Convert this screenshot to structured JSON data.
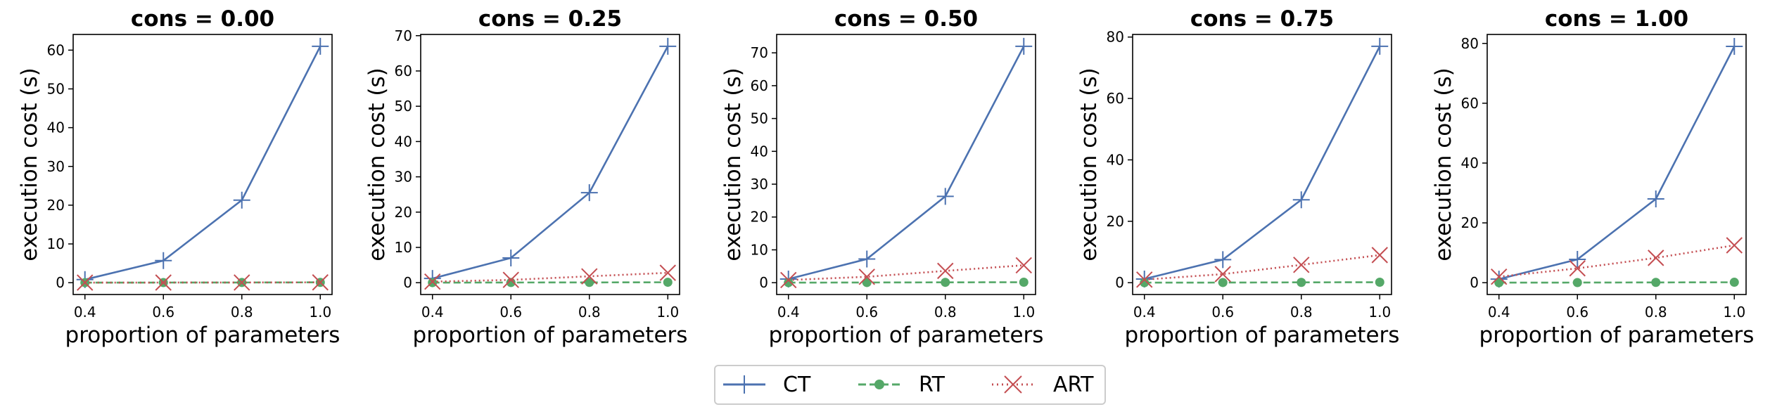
{
  "figure": {
    "legend": [
      {
        "name": "CT",
        "color": "#4c72b0",
        "marker": "plus",
        "line": "solid"
      },
      {
        "name": "RT",
        "color": "#55a868",
        "marker": "circle",
        "line": "dashed"
      },
      {
        "name": "ART",
        "color": "#c44e52",
        "marker": "x",
        "line": "dotted"
      }
    ],
    "legend_placement": "bottom-center"
  },
  "chart_data": [
    {
      "type": "line",
      "title": "cons = 0.00",
      "xlabel": "proportion of parameters",
      "ylabel": "execution cost (s)",
      "x": [
        0.4,
        0.6,
        0.8,
        1.0
      ],
      "xticks": [
        "0.4",
        "0.6",
        "0.8",
        "1.0"
      ],
      "xlim": [
        0.37,
        1.03
      ],
      "ylim": [
        -3.05,
        64.05
      ],
      "yticks": [
        0,
        10,
        20,
        30,
        40,
        50,
        60
      ],
      "grid": false,
      "series": [
        {
          "name": "CT",
          "values": [
            0.8,
            5.7,
            21.3,
            61.0
          ]
        },
        {
          "name": "RT",
          "values": [
            0.02,
            0.03,
            0.05,
            0.08
          ]
        },
        {
          "name": "ART",
          "values": [
            0.02,
            0.03,
            0.05,
            0.08
          ]
        }
      ]
    },
    {
      "type": "line",
      "title": "cons = 0.25",
      "xlabel": "proportion of parameters",
      "ylabel": "execution cost (s)",
      "x": [
        0.4,
        0.6,
        0.8,
        1.0
      ],
      "xticks": [
        "0.4",
        "0.6",
        "0.8",
        "1.0"
      ],
      "xlim": [
        0.37,
        1.03
      ],
      "ylim": [
        -3.35,
        70.35
      ],
      "yticks": [
        0,
        10,
        20,
        30,
        40,
        50,
        60,
        70
      ],
      "grid": false,
      "series": [
        {
          "name": "CT",
          "values": [
            1.2,
            7.0,
            25.5,
            67.0
          ]
        },
        {
          "name": "RT",
          "values": [
            0.02,
            0.05,
            0.08,
            0.12
          ]
        },
        {
          "name": "ART",
          "values": [
            0.3,
            0.8,
            1.8,
            2.8
          ]
        }
      ]
    },
    {
      "type": "line",
      "title": "cons = 0.50",
      "xlabel": "proportion of parameters",
      "ylabel": "execution cost (s)",
      "x": [
        0.4,
        0.6,
        0.8,
        1.0
      ],
      "xticks": [
        "0.4",
        "0.6",
        "0.8",
        "1.0"
      ],
      "xlim": [
        0.37,
        1.03
      ],
      "ylim": [
        -3.6,
        75.6
      ],
      "yticks": [
        0,
        10,
        20,
        30,
        40,
        50,
        60,
        70
      ],
      "grid": false,
      "series": [
        {
          "name": "CT",
          "values": [
            1.1,
            7.2,
            26.3,
            72.0
          ]
        },
        {
          "name": "RT",
          "values": [
            0.02,
            0.05,
            0.1,
            0.15
          ]
        },
        {
          "name": "ART",
          "values": [
            0.8,
            1.8,
            3.6,
            5.3
          ]
        }
      ]
    },
    {
      "type": "line",
      "title": "cons = 0.75",
      "xlabel": "proportion of parameters",
      "ylabel": "execution cost (s)",
      "x": [
        0.4,
        0.6,
        0.8,
        1.0
      ],
      "xticks": [
        "0.4",
        "0.6",
        "0.8",
        "1.0"
      ],
      "xlim": [
        0.37,
        1.03
      ],
      "ylim": [
        -3.85,
        80.85
      ],
      "yticks": [
        0,
        20,
        40,
        60,
        80
      ],
      "grid": false,
      "series": [
        {
          "name": "CT",
          "values": [
            1.2,
            7.5,
            27.0,
            77.0
          ]
        },
        {
          "name": "RT",
          "values": [
            0.02,
            0.05,
            0.1,
            0.15
          ]
        },
        {
          "name": "ART",
          "values": [
            1.0,
            2.8,
            5.8,
            9.0
          ]
        }
      ]
    },
    {
      "type": "line",
      "title": "cons = 1.00",
      "xlabel": "proportion of parameters",
      "ylabel": "execution cost (s)",
      "x": [
        0.4,
        0.6,
        0.8,
        1.0
      ],
      "xticks": [
        "0.4",
        "0.6",
        "0.8",
        "1.0"
      ],
      "xlim": [
        0.37,
        1.03
      ],
      "ylim": [
        -3.95,
        83.0
      ],
      "yticks": [
        0,
        20,
        40,
        60,
        80
      ],
      "grid": false,
      "series": [
        {
          "name": "CT",
          "values": [
            1.2,
            7.8,
            28.0,
            79.0
          ]
        },
        {
          "name": "RT",
          "values": [
            0.02,
            0.05,
            0.1,
            0.15
          ]
        },
        {
          "name": "ART",
          "values": [
            2.0,
            4.8,
            8.3,
            12.5
          ]
        }
      ]
    }
  ]
}
